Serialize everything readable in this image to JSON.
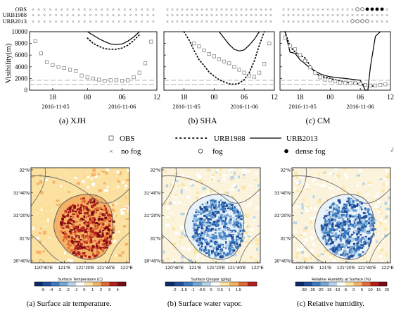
{
  "chart_data": [
    {
      "type": "line",
      "panel_caption": "(a) XJH",
      "ylabel": "Visibility(m)",
      "yticks": [
        "0",
        "2000",
        "4000",
        "6000",
        "8000",
        "10000"
      ],
      "ylim": [
        0,
        10000
      ],
      "xlim": [
        14,
        36
      ],
      "xticks": [
        {
          "v": 18,
          "t": "18"
        },
        {
          "v": 24,
          "t": "00"
        },
        {
          "v": 30,
          "t": "06"
        },
        {
          "v": 36,
          "t": "12"
        }
      ],
      "date_labels": [
        "2016-11-05",
        "2016-11-06"
      ],
      "fog_rows": [
        {
          "label": "OBS",
          "marks": "xxxxxxxxxxxxxxxxxxxxxx"
        },
        {
          "label": "URB1988",
          "marks": "xxxxxxxxxxxxxxxxxxxxxx"
        },
        {
          "label": "URB2013",
          "marks": "xxxxxxxxxxxxxxxxxxxxxx"
        }
      ],
      "obs": {
        "x": [
          15,
          16,
          17,
          18,
          19,
          20,
          21,
          22,
          23,
          24,
          25,
          26,
          27,
          28,
          29,
          30,
          31,
          32,
          33,
          34,
          35
        ],
        "y": [
          8400,
          6300,
          4800,
          4300,
          4000,
          3800,
          3500,
          3300,
          2500,
          2200,
          2000,
          1800,
          1600,
          1700,
          1700,
          1600,
          1700,
          2200,
          3000,
          4600,
          8300
        ]
      },
      "urb1988": {
        "x": [
          24,
          25,
          26,
          27,
          28,
          29,
          30,
          31,
          32,
          33
        ],
        "y": [
          8900,
          8000,
          7500,
          7100,
          7000,
          7000,
          7200,
          7700,
          8500,
          9500
        ]
      },
      "urb2013": {
        "x": [
          24,
          25,
          26,
          27,
          28,
          29,
          30,
          31,
          32,
          33
        ],
        "y": [
          10000,
          9400,
          8800,
          8300,
          7900,
          7800,
          7900,
          8400,
          9100,
          10000
        ]
      },
      "threshold_lines": [
        1000,
        1700
      ]
    },
    {
      "type": "line",
      "panel_caption": "(b) SHA",
      "ylim": [
        0,
        10000
      ],
      "xlim": [
        14,
        36
      ],
      "xticks": [
        {
          "v": 18,
          "t": "18"
        },
        {
          "v": 24,
          "t": "00"
        },
        {
          "v": 30,
          "t": "06"
        },
        {
          "v": 36,
          "t": "12"
        }
      ],
      "date_labels": [
        "2016-11-05",
        "2016-11-06"
      ],
      "fog_rows": [
        {
          "label": "OBS",
          "marks": "xxxxxxxxxxxxxxxxxxxxxx"
        },
        {
          "label": "URB1988",
          "marks": "xxxxxxxxxxxxxxxxxxxxxx"
        },
        {
          "label": "URB2013",
          "marks": "xxxxxxxxxxxxxxxxxxxxxx"
        }
      ],
      "obs": {
        "x": [
          20,
          21,
          22,
          23,
          24,
          25,
          26,
          27,
          28,
          29,
          30,
          31,
          32,
          33,
          34,
          35
        ],
        "y": [
          8000,
          7500,
          6800,
          6200,
          5800,
          5300,
          4900,
          4600,
          4000,
          3500,
          3000,
          2500,
          2300,
          3000,
          4500,
          8000
        ]
      },
      "urb1988": {
        "x": [
          18,
          19,
          20,
          21,
          22,
          23,
          24,
          25,
          26,
          27,
          28,
          29,
          30,
          31,
          32,
          33,
          34
        ],
        "y": [
          10000,
          8600,
          6800,
          5200,
          4200,
          3100,
          2400,
          1800,
          1400,
          1100,
          1000,
          1200,
          1800,
          3000,
          5000,
          7700,
          10000
        ]
      },
      "urb2013": {
        "x": [
          25,
          26,
          27,
          28,
          29,
          30,
          31,
          32,
          33
        ],
        "y": [
          10000,
          8900,
          7800,
          7000,
          6700,
          6900,
          7700,
          8700,
          10000
        ]
      },
      "threshold_lines": [
        1000,
        1700
      ]
    },
    {
      "type": "line",
      "panel_caption": "(c) CM",
      "ylim": [
        0,
        10000
      ],
      "xlim": [
        14,
        36
      ],
      "xticks": [
        {
          "v": 18,
          "t": "18"
        },
        {
          "v": 24,
          "t": "00"
        },
        {
          "v": 30,
          "t": "06"
        },
        {
          "v": 36,
          "t": "12"
        }
      ],
      "date_labels": [
        "2016-11-05",
        "2016-11-06"
      ],
      "fog_rows": [
        {
          "label": "OBS",
          "marks": "xxxxxxxxxxxxxxxoo****x"
        },
        {
          "label": "URB1988",
          "marks": "xxxxxxxxxxxxxxxxxxxxxx"
        },
        {
          "label": "URB2013",
          "marks": "xxxxxxxxxxxxxxooooxxxx"
        }
      ],
      "obs": {
        "x": [
          15,
          16,
          17,
          18,
          19,
          20,
          21,
          22,
          23,
          24,
          25,
          26,
          27,
          28,
          29,
          30,
          31,
          32,
          33,
          34,
          35
        ],
        "y": [
          9000,
          7600,
          7000,
          6000,
          5000,
          3900,
          3000,
          2200,
          1800,
          1700,
          1500,
          1300,
          1200,
          1200,
          1200,
          1100,
          900,
          800,
          800,
          900,
          1000
        ]
      },
      "urb1988": {
        "x": [
          15,
          16,
          17,
          18,
          19,
          20,
          21,
          22,
          23,
          24,
          25,
          26,
          27,
          28,
          29,
          30,
          31,
          32,
          33
        ],
        "y": [
          10000,
          7500,
          6500,
          6000,
          5500,
          4200,
          3000,
          2400,
          2200,
          2000,
          1800,
          1600,
          1400,
          1300,
          1200,
          1000,
          900,
          800,
          600
        ]
      },
      "urb2013": {
        "x": [
          15,
          16,
          17,
          18,
          19,
          20,
          21,
          22,
          23,
          24,
          25,
          26,
          27,
          28,
          29,
          30,
          31,
          31.5,
          32,
          33,
          34
        ],
        "y": [
          10000,
          6500,
          6300,
          5200,
          4500,
          3800,
          3300,
          2800,
          2500,
          2300,
          2200,
          2100,
          2000,
          1900,
          1800,
          1700,
          0,
          0,
          4000,
          9200,
          10000
        ]
      },
      "threshold_lines": [
        1000,
        1700
      ]
    },
    {
      "type": "heatmap",
      "panel_caption": "(a) Surface air temperature.",
      "colorbar_title": "Surface Temperature  (C)",
      "colorbar_ticks": [
        "-5",
        "-4",
        "-3",
        "-2",
        "-1",
        "0",
        "1",
        "2",
        "3",
        "4"
      ],
      "colorbar_colors": [
        "#0a2a6b",
        "#1f4e9c",
        "#3d7bbf",
        "#74a7d4",
        "#b6d3ea",
        "#ffffff",
        "#fbe6a6",
        "#f4b266",
        "#e06b34",
        "#b51f1c",
        "#7a0a12"
      ],
      "lat_labels": [
        "32°N",
        "31°40'N",
        "31°20'N",
        "31°N",
        "30°40'N"
      ],
      "lon_labels": [
        "120°40'E",
        "121°E",
        "121°20'E",
        "121°40'E",
        "122°E"
      ],
      "pattern": "warm"
    },
    {
      "type": "heatmap",
      "panel_caption": "(b) Surface water vapor.",
      "colorbar_title": "Surface Qvapor  (g/kg)",
      "colorbar_ticks": [
        "-2",
        "-1.5",
        "-1",
        "-0.5",
        "0",
        "0.5",
        "1",
        "1.5"
      ],
      "colorbar_colors": [
        "#0a2a6b",
        "#1f4e9c",
        "#3d7bbf",
        "#74a7d4",
        "#b6d3ea",
        "#ffffff",
        "#fbe6a6",
        "#f4b266",
        "#e06b34",
        "#b51f1c"
      ],
      "lat_labels": [
        "32°N",
        "31°40'N",
        "31°20'N",
        "31°N",
        "30°40'N"
      ],
      "lon_labels": [
        "120°40'E",
        "121°E",
        "121°20'E",
        "121°40'E",
        "122°E"
      ],
      "pattern": "cool"
    },
    {
      "type": "heatmap",
      "panel_caption": "(c) Relative humidity.",
      "colorbar_title": "Relative Humidity at Surface   (%)",
      "colorbar_ticks": [
        "-30",
        "-25",
        "-20",
        "-15",
        "-10",
        "-5",
        "0",
        "5",
        "10",
        "15",
        "20"
      ],
      "colorbar_colors": [
        "#0a2a6b",
        "#1f4e9c",
        "#3d7bbf",
        "#74a7d4",
        "#b6d3ea",
        "#ffffff",
        "#fbe6a6",
        "#f4b266",
        "#e06b34",
        "#b51f1c",
        "#7a0a12"
      ],
      "lat_labels": [
        "32°N",
        "31°40'N",
        "31°20'N",
        "31°N",
        "30°40'N"
      ],
      "lon_labels": [
        "120°40'E",
        "121°E",
        "121°20'E",
        "121°40'E",
        "122°E"
      ],
      "pattern": "cool"
    }
  ],
  "legend": {
    "obs_label": "OBS",
    "urb1988_label": "URB1988",
    "urb2013_label": "URB2013",
    "nofog_label": "no fog",
    "fog_label": "fog",
    "densefog_label": "dense fog",
    "stray_mark": "↲"
  },
  "colors": {
    "line": "#000000",
    "threshold": "#aaaaaa",
    "obs_marker": "#777777",
    "land_bg": "#fbe6a6"
  }
}
